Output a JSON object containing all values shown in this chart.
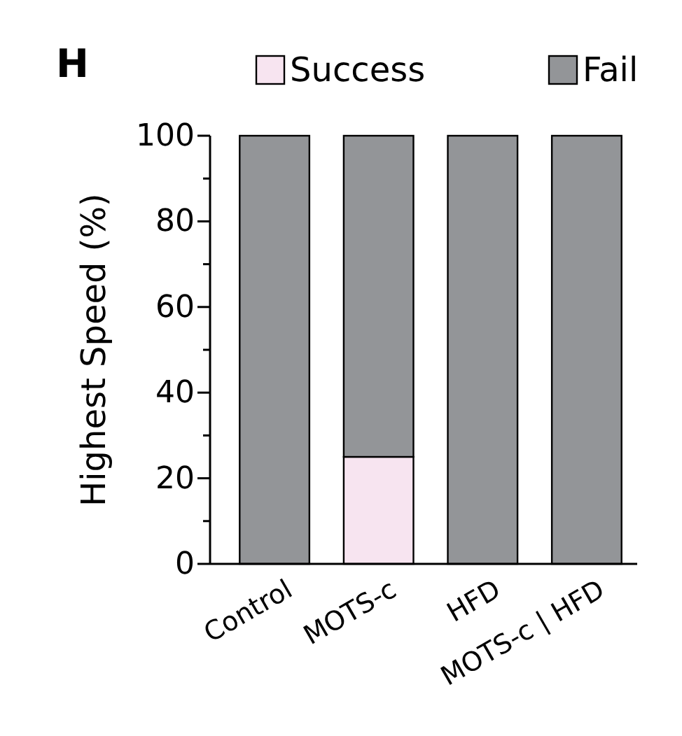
{
  "chart_data": {
    "type": "bar",
    "title": "H",
    "ylabel": "Highest Speed (%)",
    "categories": [
      "Control",
      "MOTS-c",
      "HFD",
      "MOTS-c | HFD"
    ],
    "stacked": true,
    "legend": "top",
    "series": [
      {
        "name": "Success",
        "color": "#f7e4f0",
        "values": [
          0,
          25,
          0,
          0
        ]
      },
      {
        "name": "Fail",
        "color": "#939598",
        "values": [
          100,
          75,
          100,
          100
        ]
      }
    ],
    "ylim": [
      0,
      100
    ],
    "yticks": [
      0,
      {
        "value": 10,
        "label": null
      },
      20,
      {
        "value": 30,
        "label": null
      },
      40,
      {
        "value": 50,
        "label": null
      },
      60,
      {
        "value": 70,
        "label": null
      },
      80,
      {
        "value": 90,
        "label": null
      },
      100
    ]
  }
}
